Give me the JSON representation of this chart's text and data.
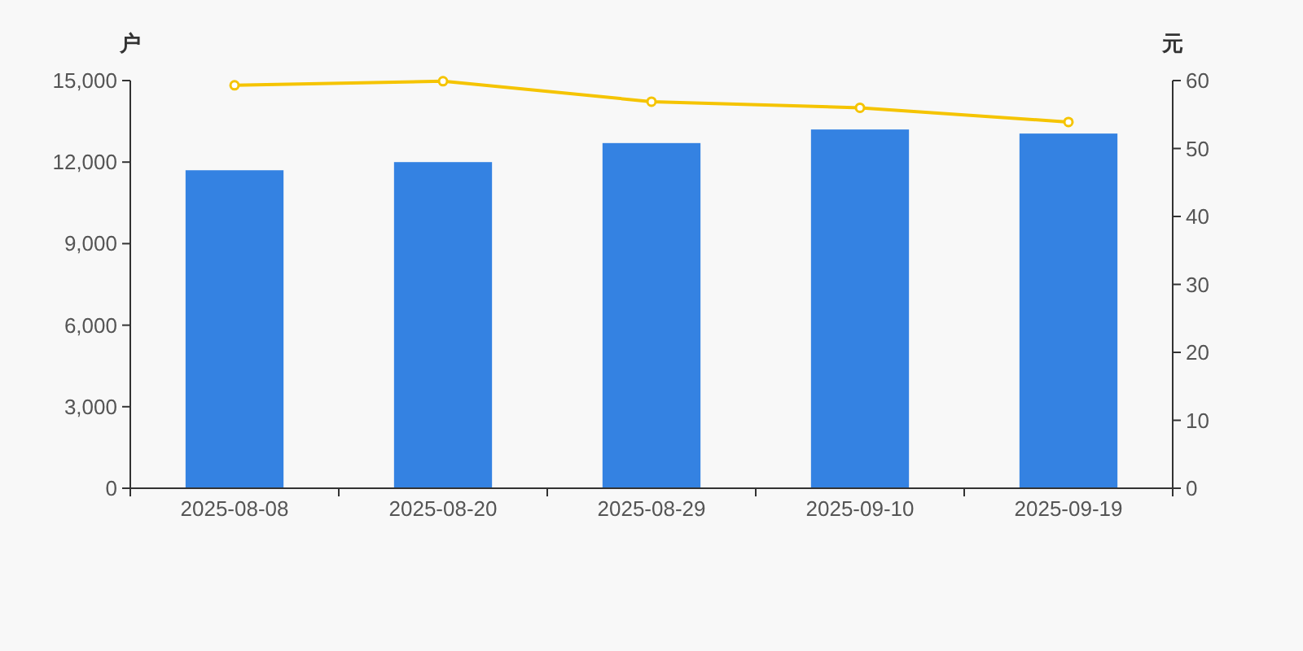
{
  "chart_data": {
    "type": "bar",
    "ylabel": "户",
    "y2label": "元",
    "categories": [
      "2025-08-08",
      "2025-08-20",
      "2025-08-29",
      "2025-09-10",
      "2025-09-19"
    ],
    "series": [
      {
        "color": "#3482e2",
        "values": [
          11700,
          12000,
          12700,
          13200,
          13050
        ]
      },
      {
        "type": "line",
        "axis": "y2",
        "color": "#f5c400",
        "values": [
          59.3,
          59.9,
          56.9,
          56.0,
          53.9
        ]
      }
    ],
    "marker": "circle",
    "ylim": [
      0,
      15000
    ],
    "yticks": [
      0,
      {
        "value": 3000,
        "label": "3,000"
      },
      {
        "value": 6000,
        "label": "6,000"
      },
      {
        "value": 9000,
        "label": "9,000"
      },
      {
        "value": 12000,
        "label": "12,000"
      },
      {
        "value": 15000,
        "label": "15,000"
      }
    ],
    "y2lim": [
      0,
      60
    ],
    "y2ticks": [
      0,
      10,
      20,
      30,
      40,
      50,
      60
    ]
  }
}
